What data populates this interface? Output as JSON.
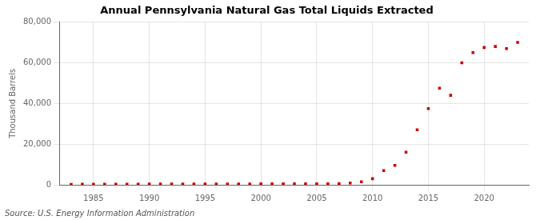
{
  "chart_data": {
    "type": "scatter",
    "title": "Annual Pennsylvania Natural Gas Total Liquids Extracted",
    "ylabel": "Thousand Barrels",
    "annotations": [
      "Source: U.S. Energy Information Administration"
    ],
    "x": [
      1983,
      1984,
      1985,
      1986,
      1987,
      1988,
      1989,
      1990,
      1991,
      1992,
      1993,
      1994,
      1995,
      1996,
      1997,
      1998,
      1999,
      2000,
      2001,
      2002,
      2003,
      2004,
      2005,
      2006,
      2007,
      2008,
      2009,
      2010,
      2011,
      2012,
      2013,
      2014,
      2015,
      2016,
      2017,
      2018,
      2019,
      2020,
      2021,
      2022,
      2023
    ],
    "values": [
      200,
      250,
      280,
      300,
      310,
      320,
      330,
      340,
      350,
      360,
      370,
      380,
      390,
      400,
      410,
      420,
      430,
      440,
      450,
      460,
      470,
      480,
      490,
      500,
      600,
      850,
      1500,
      3000,
      7000,
      9500,
      16000,
      27000,
      37500,
      47500,
      44000,
      60000,
      65000,
      67500,
      68000,
      67000,
      70000
    ],
    "color": "#cc0000",
    "marker": "square",
    "xlim": [
      1982,
      2024
    ],
    "xticks": [
      1985,
      1990,
      1995,
      2000,
      2005,
      2010,
      2015,
      2020
    ],
    "ylim": [
      0,
      80000
    ],
    "yticks": [
      0,
      {
        "value": 20000,
        "label": "20,000"
      },
      {
        "value": 40000,
        "label": "40,000"
      },
      {
        "value": 60000,
        "label": "60,000"
      },
      {
        "value": 80000,
        "label": "80,000"
      }
    ],
    "grid": true
  }
}
